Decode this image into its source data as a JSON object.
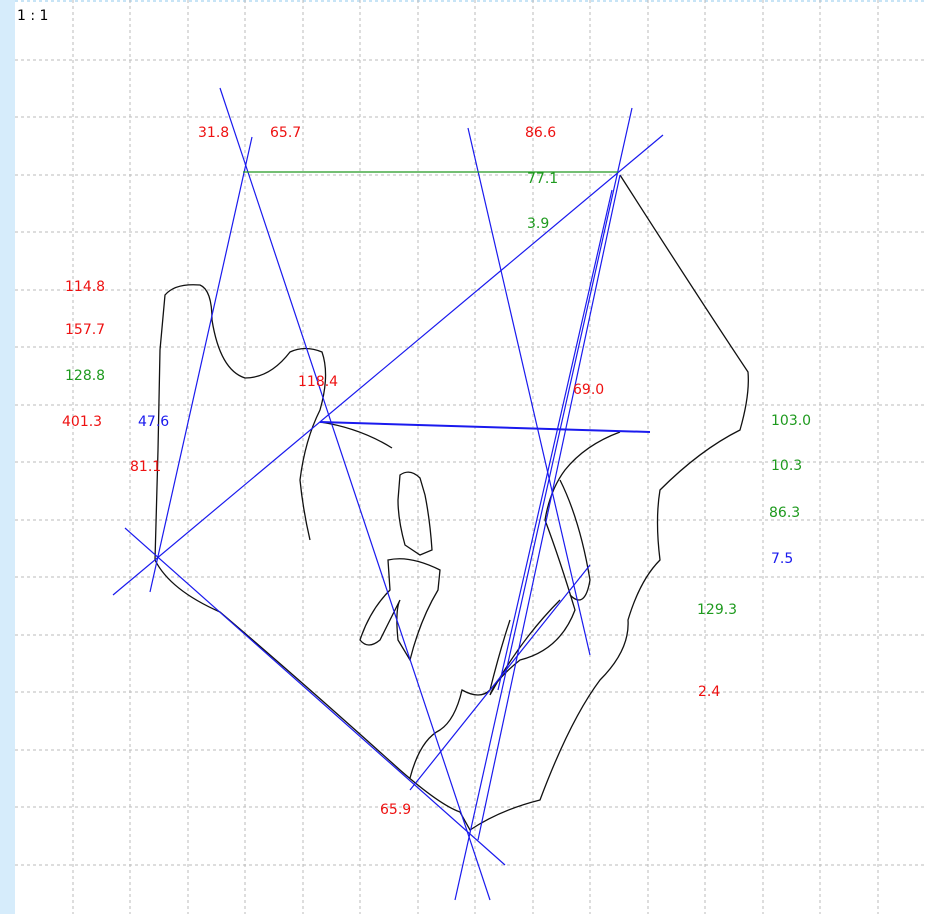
{
  "scale": "1 : 1",
  "measurements": [
    {
      "label": "31.8",
      "color": "red"
    },
    {
      "label": "65.7",
      "color": "red"
    },
    {
      "label": "86.6",
      "color": "red"
    },
    {
      "label": "77.1",
      "color": "green"
    },
    {
      "label": "3.9",
      "color": "green"
    },
    {
      "label": "114.8",
      "color": "red"
    },
    {
      "label": "157.7",
      "color": "red"
    },
    {
      "label": "128.8",
      "color": "green"
    },
    {
      "label": "118.4",
      "color": "red"
    },
    {
      "label": "69.0",
      "color": "red"
    },
    {
      "label": "401.3",
      "color": "red"
    },
    {
      "label": "47.6",
      "color": "blue"
    },
    {
      "label": "103.0",
      "color": "green"
    },
    {
      "label": "81.1",
      "color": "red"
    },
    {
      "label": "10.3",
      "color": "green"
    },
    {
      "label": "86.3",
      "color": "green"
    },
    {
      "label": "7.5",
      "color": "blue"
    },
    {
      "label": "129.3",
      "color": "green"
    },
    {
      "label": "2.4",
      "color": "red"
    },
    {
      "label": "65.9",
      "color": "red"
    }
  ]
}
